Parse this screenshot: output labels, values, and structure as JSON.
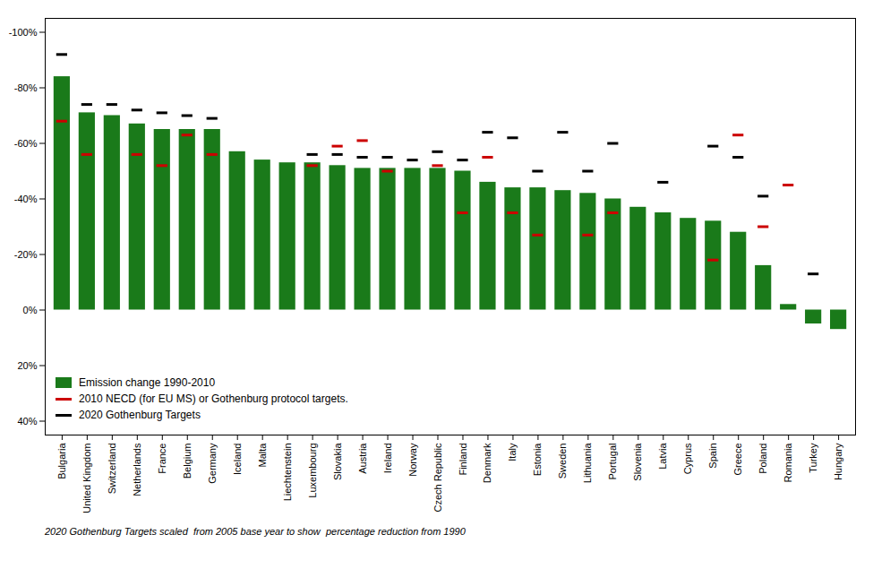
{
  "chart_data": {
    "type": "bar",
    "categories": [
      "Bulgaria",
      "United Kingdom",
      "Switzerland",
      "Netherlands",
      "France",
      "Belgium",
      "Germany",
      "Iceland",
      "Malta",
      "Liechtenstein",
      "Luxembourg",
      "Slovakia",
      "Austria",
      "Ireland",
      "Norway",
      "Czech Republic",
      "Finland",
      "Denmark",
      "Italy",
      "Estonia",
      "Sweden",
      "Lithuania",
      "Portugal",
      "Slovenia",
      "Latvia",
      "Cyprus",
      "Spain",
      "Greece",
      "Poland",
      "Romania",
      "Turkey",
      "Hungary"
    ],
    "series": [
      {
        "name": "Emission change 1990-2010",
        "type": "bar",
        "color": "#1a7a1a",
        "values": [
          -84,
          -71,
          -70,
          -67,
          -65,
          -65,
          -65,
          -57,
          -54,
          -53,
          -53,
          -52,
          -51,
          -51,
          -51,
          -51,
          -50,
          -46,
          -44,
          -44,
          -43,
          -42,
          -40,
          -37,
          -35,
          -33,
          -32,
          -28,
          -16,
          -2,
          5,
          7
        ]
      },
      {
        "name": "2010 NECD (for EU MS) or Gothenburg protocol targets.",
        "type": "tick",
        "color": "#cc0000",
        "values": [
          -68,
          -56,
          null,
          -56,
          -52,
          -63,
          -56,
          null,
          null,
          null,
          -52,
          -59,
          -61,
          -50,
          null,
          -52,
          -35,
          -55,
          -35,
          -27,
          null,
          -27,
          -35,
          null,
          null,
          null,
          -18,
          -63,
          -30,
          -45,
          null,
          null
        ]
      },
      {
        "name": "2020 Gothenburg Targets",
        "type": "tick",
        "color": "#000000",
        "values": [
          -92,
          -74,
          -74,
          -72,
          -71,
          -70,
          -69,
          null,
          null,
          null,
          -56,
          -56,
          -55,
          -55,
          -54,
          -57,
          -54,
          -64,
          -62,
          -50,
          -64,
          -50,
          -60,
          null,
          -46,
          null,
          -59,
          -55,
          -41,
          null,
          -13,
          null
        ]
      }
    ],
    "ylim": [
      45,
      -105
    ],
    "yticks": [
      {
        "value": -100,
        "label": "-100%"
      },
      {
        "value": -80,
        "label": "-80%"
      },
      {
        "value": -60,
        "label": "-60%"
      },
      {
        "value": -40,
        "label": "-40%"
      },
      {
        "value": -20,
        "label": "-20%"
      },
      {
        "value": 0,
        "label": "0%"
      },
      {
        "value": 20,
        "label": "20%"
      },
      {
        "value": 40,
        "label": "40%"
      }
    ],
    "grid": false,
    "legend": "lower left",
    "annotations": [
      "2020 Gothenburg Targets scaled  from 2005 base year to show  percentage reduction from 1990"
    ]
  }
}
